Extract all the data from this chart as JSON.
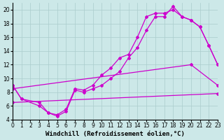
{
  "bg_color": "#cce8e8",
  "grid_color": "#aacccc",
  "line_color": "#cc00cc",
  "xlabel": "Windchill (Refroidissement éolien,°C)",
  "xlim": [
    0,
    23
  ],
  "ylim": [
    4,
    21
  ],
  "yticks": [
    4,
    6,
    8,
    10,
    12,
    14,
    16,
    18,
    20
  ],
  "xticks": [
    0,
    1,
    2,
    3,
    4,
    5,
    6,
    7,
    8,
    9,
    10,
    11,
    12,
    13,
    14,
    15,
    16,
    17,
    18,
    19,
    20,
    21,
    22,
    23
  ],
  "line1_x": [
    0,
    1,
    3,
    4,
    5,
    6,
    7,
    8,
    9,
    10,
    11,
    12,
    13,
    14,
    15,
    16,
    17,
    18,
    19,
    20,
    21,
    22,
    23
  ],
  "line1_y": [
    9.0,
    7.0,
    6.5,
    5.0,
    4.7,
    5.5,
    8.5,
    8.3,
    9.0,
    10.5,
    11.5,
    13.0,
    13.5,
    16.0,
    19.0,
    19.5,
    19.5,
    20.0,
    19.0,
    18.5,
    17.5,
    14.8,
    12.0
  ],
  "line2_x": [
    0,
    1,
    3,
    4,
    5,
    6,
    7,
    8,
    9,
    10,
    11,
    12,
    13,
    14,
    15,
    16,
    17,
    18,
    19,
    20,
    21,
    22,
    23
  ],
  "line2_y": [
    9.0,
    7.0,
    6.0,
    5.0,
    4.5,
    5.2,
    8.3,
    8.0,
    8.5,
    9.0,
    10.0,
    11.0,
    13.0,
    14.5,
    17.0,
    19.0,
    19.0,
    20.5,
    19.0,
    18.5,
    17.5,
    14.8,
    12.0
  ],
  "line3_x": [
    0,
    23
  ],
  "line3_y": [
    6.5,
    7.8
  ],
  "line4_x": [
    0,
    20,
    23
  ],
  "line4_y": [
    8.5,
    12.0,
    9.0
  ],
  "marker": "D",
  "marker_size": 2.0,
  "linewidth": 0.9,
  "xlabel_fontsize": 6.5,
  "tick_fontsize": 5.5
}
